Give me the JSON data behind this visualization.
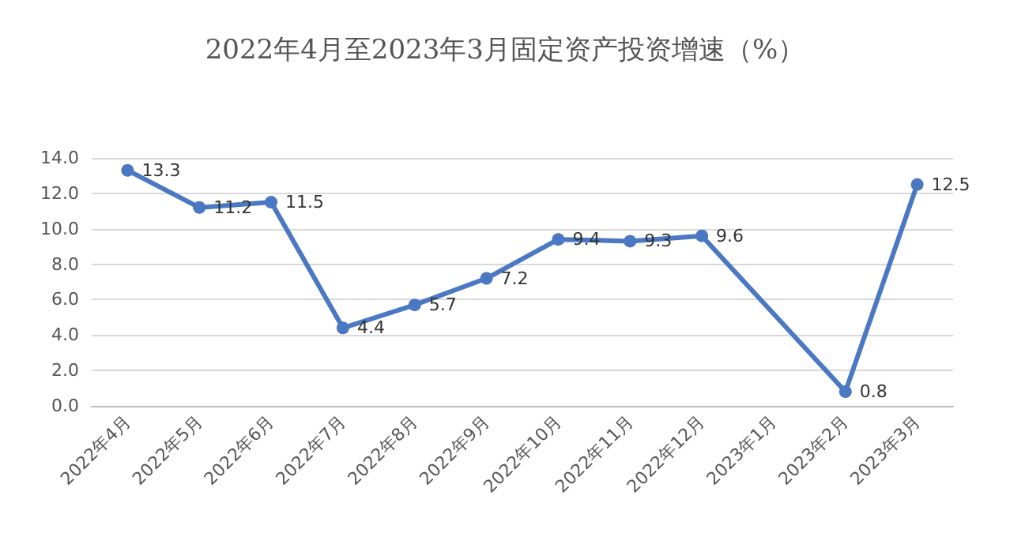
{
  "chart_data": {
    "type": "line",
    "title": "2022年4月至2023年3月固定资产投资增速（%）",
    "categories": [
      "2022年4月",
      "2022年5月",
      "2022年6月",
      "2022年7月",
      "2022年8月",
      "2022年9月",
      "2022年10月",
      "2022年11月",
      "2022年12月",
      "2023年1月",
      "2023年2月",
      "2023年3月"
    ],
    "series": [
      {
        "color": "#4a78c2",
        "values": [
          13.3,
          11.2,
          11.5,
          4.4,
          5.7,
          7.2,
          9.4,
          9.3,
          9.6,
          null,
          0.8,
          12.5
        ]
      }
    ],
    "ylim": [
      0,
      14
    ],
    "yticks": [
      {
        "value": 0,
        "label": "0.0"
      },
      {
        "value": 2,
        "label": "2.0"
      },
      {
        "value": 4,
        "label": "4.0"
      },
      {
        "value": 6,
        "label": "6.0"
      },
      {
        "value": 8,
        "label": "8.0"
      },
      {
        "value": 10,
        "label": "10.0"
      },
      {
        "value": 12,
        "label": "12.0"
      },
      {
        "value": 14,
        "label": "14.0"
      }
    ],
    "grid": "y",
    "marker": "circle",
    "line_style": "solid",
    "data_labels": true
  }
}
